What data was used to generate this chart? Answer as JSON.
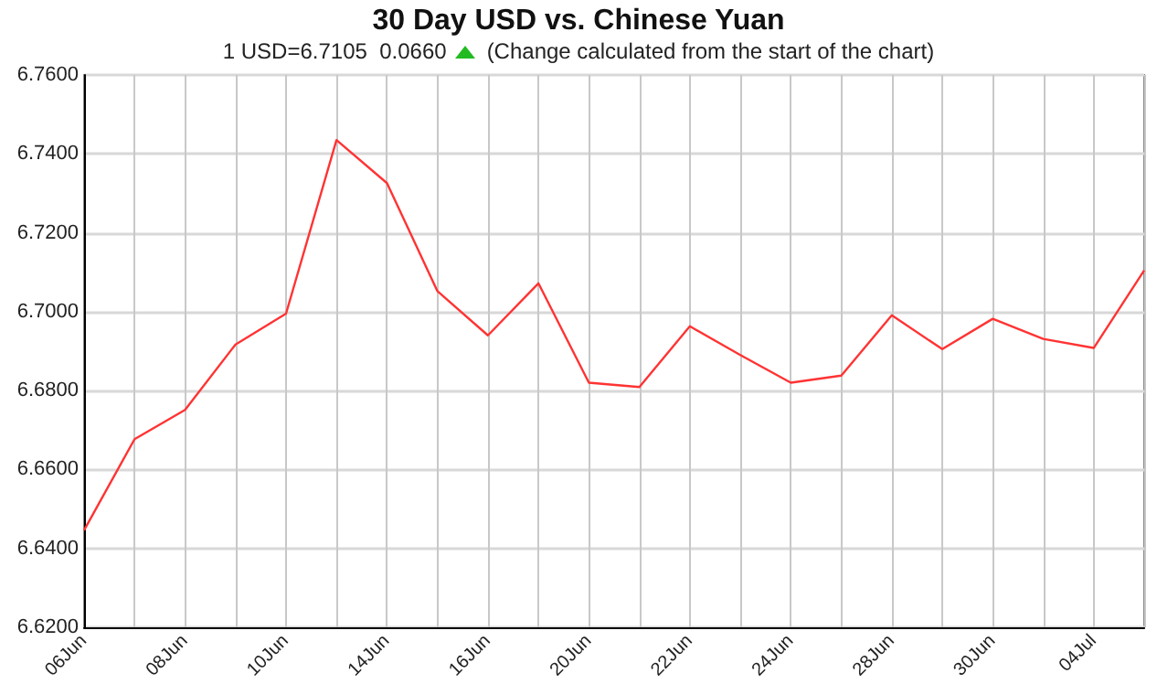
{
  "chart_data": {
    "type": "line",
    "title": "30 Day USD vs. Chinese Yuan",
    "subtitle": "1 USD=6.7105  0.0660",
    "annotations": [
      "(Change calculated from the start of the chart)"
    ],
    "categories": [
      "06Jun",
      null,
      "08Jun",
      null,
      "10Jun",
      null,
      "14Jun",
      null,
      "16Jun",
      null,
      "20Jun",
      null,
      "22Jun",
      null,
      "24Jun",
      null,
      "28Jun",
      null,
      "30Jun",
      null,
      "04Jul",
      null
    ],
    "series": [
      {
        "color": "#ff3333",
        "values": [
          6.6446,
          6.6677,
          6.6751,
          6.6917,
          6.6995,
          6.7435,
          6.7326,
          6.7052,
          6.694,
          6.7072,
          6.682,
          6.6809,
          6.6963,
          6.689,
          6.682,
          6.6838,
          6.6991,
          6.6905,
          6.6982,
          6.6931,
          6.6908,
          6.7105
        ]
      }
    ],
    "ylim": [
      6.62,
      6.76
    ],
    "yticks": [
      {
        "value": 6.62,
        "label": "6.6200"
      },
      {
        "value": 6.64,
        "label": "6.6400"
      },
      {
        "value": 6.66,
        "label": "6.6600"
      },
      {
        "value": 6.68,
        "label": "6.6800"
      },
      {
        "value": 6.7,
        "label": "6.7000"
      },
      {
        "value": 6.72,
        "label": "6.7200"
      },
      {
        "value": 6.74,
        "label": "6.7400"
      },
      {
        "value": 6.76,
        "label": "6.7600"
      }
    ],
    "grid": true,
    "marker": "none",
    "line_style": "solid"
  }
}
